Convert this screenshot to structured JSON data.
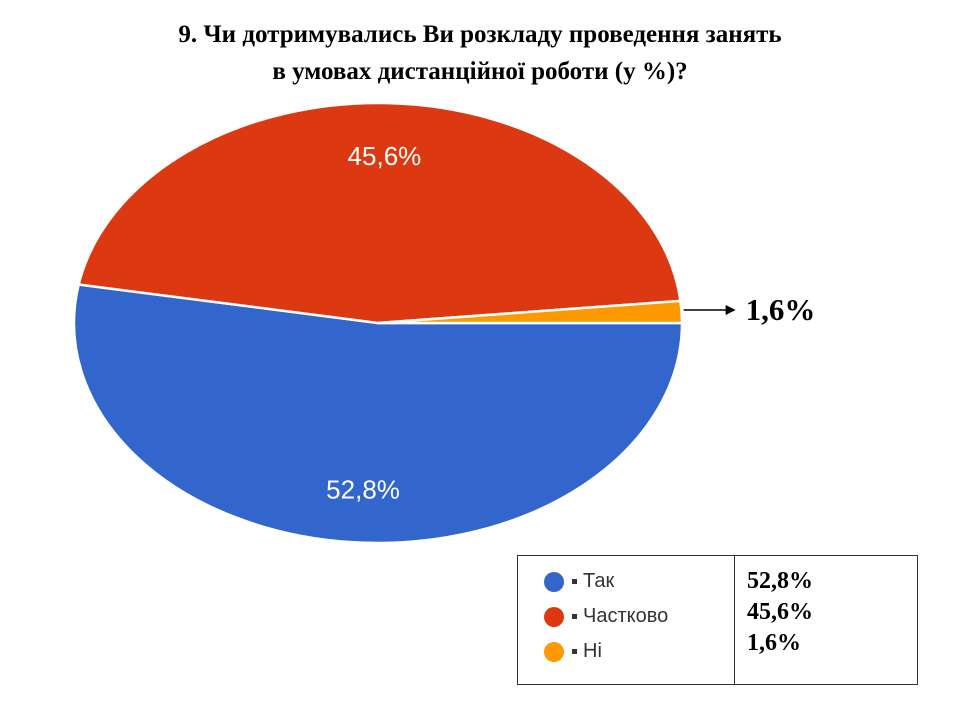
{
  "title": {
    "line1": "9. Чи дотримувались Ви розкладу проведення занять",
    "line2": "в умовах дистанційної роботи (у %)?"
  },
  "chart_data": {
    "type": "pie",
    "title": "9. Чи дотримувались Ви розкладу проведення занять в умовах дистанційної роботи (у %)?",
    "categories": [
      "Так",
      "Частково",
      "Ні"
    ],
    "values": [
      52.8,
      45.6,
      1.6
    ],
    "data_labels": [
      "52,8%",
      "45,6%",
      "1,6%"
    ],
    "colors": [
      "#3366cc",
      "#dc3912",
      "#ff9900"
    ],
    "legend_position": "bottom-right"
  },
  "legend": {
    "items": [
      {
        "label": "Так",
        "color": "#3366cc"
      },
      {
        "label": "Частково",
        "color": "#dc3912"
      },
      {
        "label": "Ні",
        "color": "#ff9900"
      }
    ],
    "values": [
      "52,8%",
      "45,6%",
      "1,6%"
    ]
  }
}
